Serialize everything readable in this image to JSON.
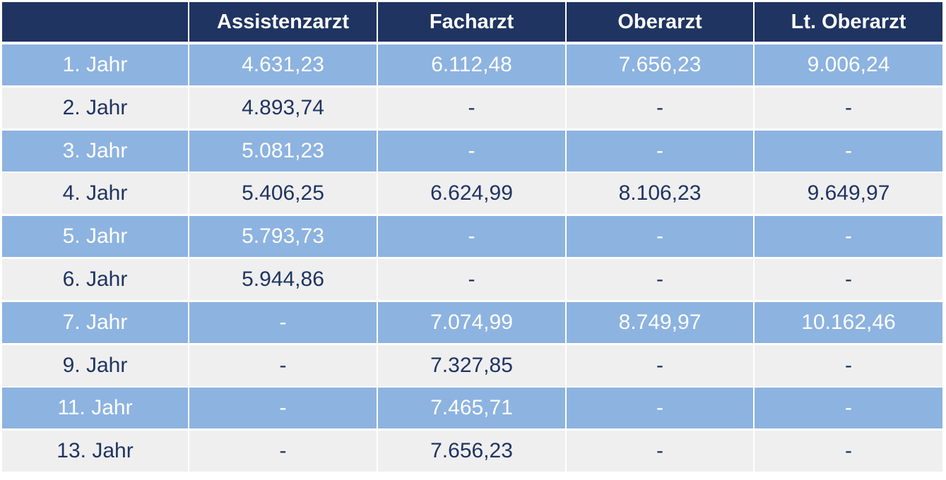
{
  "table": {
    "header": [
      "Assistenzarzt",
      "Facharzt",
      "Oberarzt",
      "Lt. Oberarzt"
    ],
    "rows": [
      [
        "1. Jahr",
        "4.631,23",
        "6.112,48",
        "7.656,23",
        "9.006,24"
      ],
      [
        "2. Jahr",
        "4.893,74",
        "-",
        "-",
        "-"
      ],
      [
        "3. Jahr",
        "5.081,23",
        "-",
        "-",
        "-"
      ],
      [
        "4. Jahr",
        "5.406,25",
        "6.624,99",
        "8.106,23",
        "9.649,97"
      ],
      [
        "5. Jahr",
        "5.793,73",
        "-",
        "-",
        "-"
      ],
      [
        "6. Jahr",
        "5.944,86",
        "-",
        "-",
        "-"
      ],
      [
        "7. Jahr",
        "-",
        "7.074,99",
        "8.749,97",
        "10.162,46"
      ],
      [
        "9. Jahr",
        "-",
        "7.327,85",
        "-",
        "-"
      ],
      [
        "11. Jahr",
        "-",
        "7.465,71",
        "-",
        "-"
      ],
      [
        "13. Jahr",
        "-",
        "7.656,23",
        "-",
        "-"
      ]
    ]
  }
}
